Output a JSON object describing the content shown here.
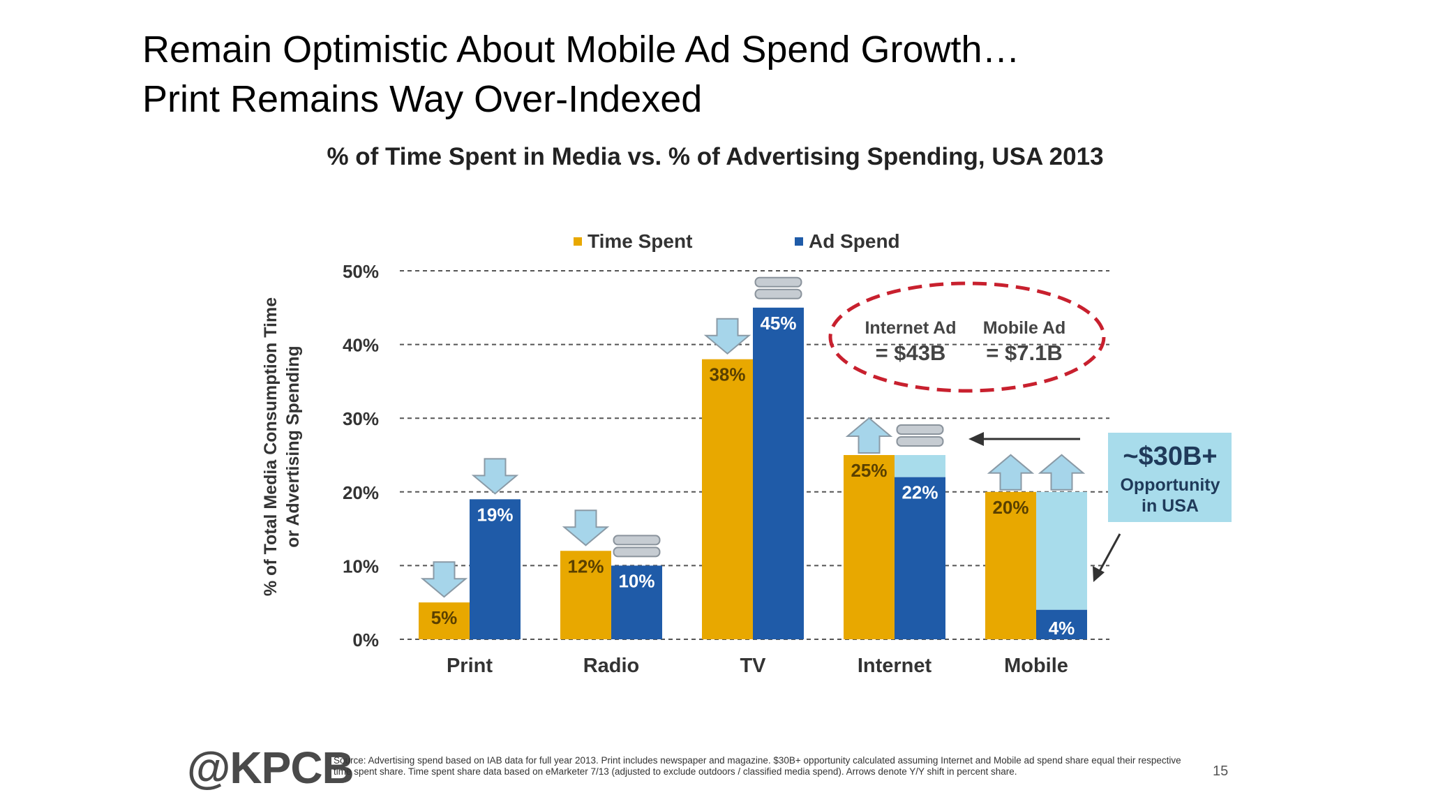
{
  "slide": {
    "title_line1": "Remain Optimistic About Mobile Ad Spend Growth…",
    "title_line2": "Print Remains Way Over-Indexed"
  },
  "chart_data": {
    "type": "bar",
    "title": "% of Time Spent in Media vs. % of Advertising Spending, USA 2013",
    "ylabel_line1": "% of Total Media Consumption Time",
    "ylabel_line2": "or Advertising Spending",
    "xlabel": "",
    "ylim": [
      0,
      50
    ],
    "yticks": [
      0,
      10,
      20,
      30,
      40,
      50
    ],
    "ytick_labels": [
      "0%",
      "10%",
      "20%",
      "30%",
      "40%",
      "50%"
    ],
    "grid": true,
    "legend_position": "top",
    "categories": [
      "Print",
      "Radio",
      "TV",
      "Internet",
      "Mobile"
    ],
    "series": [
      {
        "name": "Time Spent",
        "color": "#E8A800",
        "values": [
          5,
          12,
          38,
          25,
          20
        ],
        "labels": [
          "5%",
          "12%",
          "38%",
          "25%",
          "20%"
        ],
        "yoy_shift": [
          "down",
          "down",
          "down",
          "up",
          "up"
        ]
      },
      {
        "name": "Ad Spend",
        "color": "#1F5BA8",
        "values": [
          19,
          10,
          45,
          22,
          4
        ],
        "labels": [
          "19%",
          "10%",
          "45%",
          "22%",
          "4%"
        ],
        "yoy_shift": [
          "down",
          "flat",
          "flat",
          "flat",
          "up"
        ]
      }
    ],
    "opportunity_fill": {
      "color": "#A8DCEB",
      "internet_to": 25,
      "mobile_to": 20
    },
    "annotations": {
      "internet_ad_line1": "Internet Ad",
      "internet_ad_line2": "= $43B",
      "mobile_ad_line1": "Mobile Ad",
      "mobile_ad_line2": "= $7.1B",
      "opportunity_line1": "~$30B+",
      "opportunity_line2": "Opportunity",
      "opportunity_line3": "in USA"
    }
  },
  "footer": {
    "logo": "@KPCB",
    "source": "Source: Advertising spend based on IAB data for full year 2013. Print includes newspaper and magazine. $30B+ opportunity calculated assuming Internet and Mobile ad spend share equal their respective time spent share. Time spent share data based on eMarketer 7/13 (adjusted to exclude outdoors / classified media spend). Arrows denote Y/Y shift in percent share.",
    "page_number": "15"
  }
}
